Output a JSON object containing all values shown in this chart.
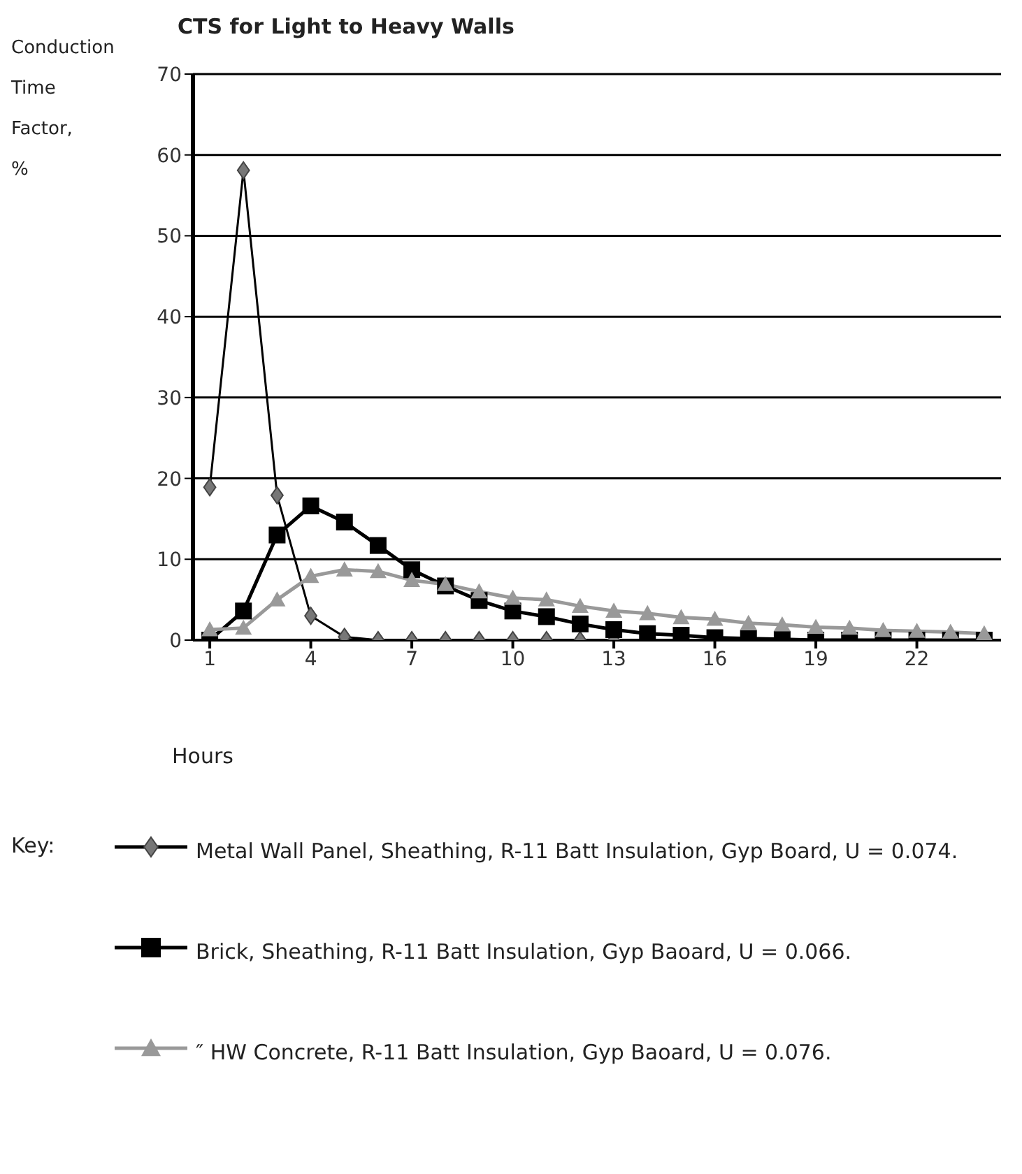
{
  "chart_data": {
    "type": "line",
    "title": "CTS for Light to Heavy Walls",
    "xlabel": "Hours",
    "ylabel": "Conduction Time Factor, %",
    "legend_title": "Key:",
    "x": [
      1,
      2,
      3,
      4,
      5,
      6,
      7,
      8,
      9,
      10,
      11,
      12,
      13,
      14,
      15,
      16,
      17,
      18,
      19,
      20,
      21,
      22,
      23,
      24
    ],
    "xlim": [
      0.5,
      24.5
    ],
    "xticks": [
      1,
      4,
      7,
      10,
      13,
      16,
      19,
      22
    ],
    "ylim": [
      0,
      70
    ],
    "yticks": [
      0,
      10,
      20,
      30,
      40,
      50,
      60,
      70
    ],
    "grid": "y",
    "legend": "bottom",
    "line_style": "solid",
    "series": [
      {
        "name": "Metal Wall Panel, Sheathing, R-11 Batt Insulation, Gyp Board, U = 0.074.",
        "color": "#000000",
        "marker": "diamond",
        "values": [
          18.9,
          58.1,
          17.9,
          3.0,
          0.4,
          0,
          0,
          0,
          0,
          0,
          0,
          0,
          0,
          0,
          0,
          0,
          0,
          0,
          0,
          0,
          0,
          0,
          0,
          0
        ]
      },
      {
        "name": "Brick, Sheathing, R-11 Batt Insulation, Gyp Baoard, U = 0.066.",
        "color": "#000000",
        "marker": "square",
        "values": [
          0,
          3.6,
          13.0,
          16.6,
          14.6,
          11.7,
          8.7,
          6.7,
          4.9,
          3.6,
          2.9,
          2.0,
          1.3,
          0.8,
          0.6,
          0.3,
          0.2,
          0.1,
          0,
          0,
          0,
          0,
          0,
          0
        ]
      },
      {
        "name": "″ HW Concrete, R-11 Batt Insulation, Gyp Baoard, U = 0.076.",
        "color": "#999999",
        "marker": "triangle",
        "values": [
          1.3,
          1.5,
          5.0,
          7.9,
          8.7,
          8.5,
          7.4,
          6.9,
          6.0,
          5.2,
          5.0,
          4.2,
          3.6,
          3.3,
          2.8,
          2.6,
          2.1,
          1.9,
          1.6,
          1.5,
          1.2,
          1.1,
          1.0,
          0.8
        ]
      }
    ]
  }
}
